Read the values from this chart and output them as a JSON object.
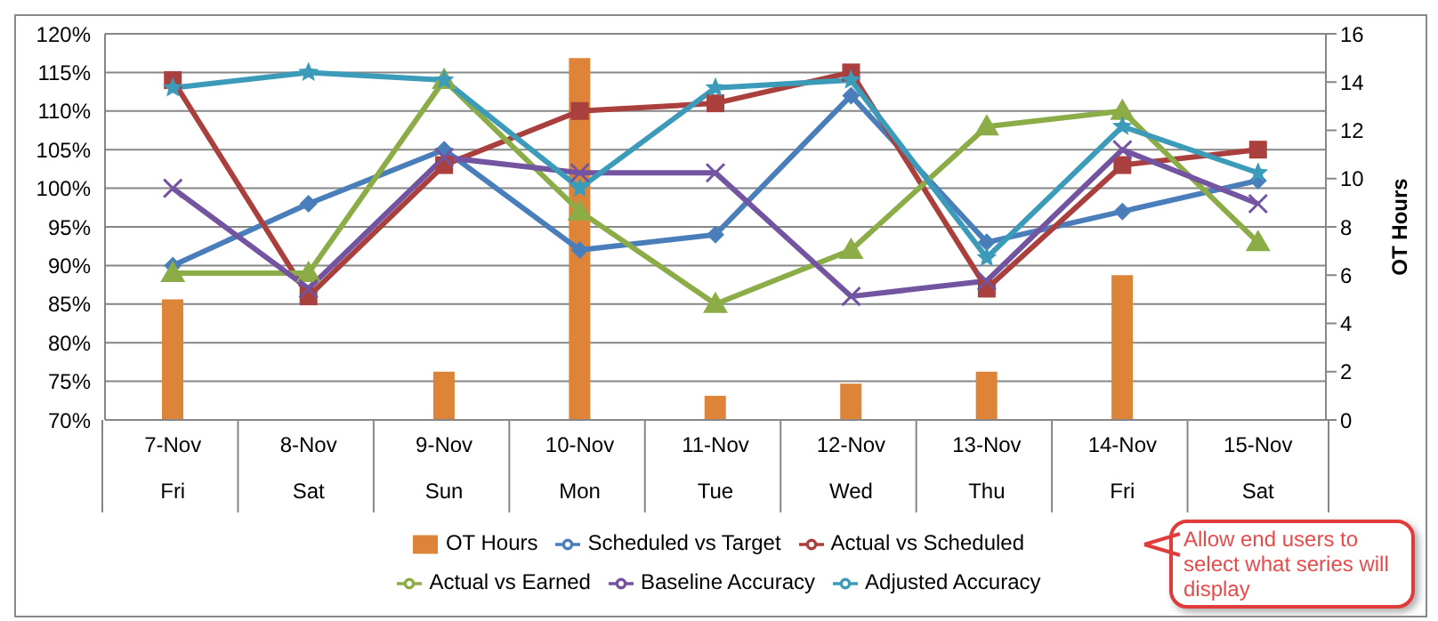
{
  "chart_data": {
    "type": "line",
    "categories": [
      "7-Nov\nFri",
      "8-Nov\nSat",
      "9-Nov\nSun",
      "10-Nov\nMon",
      "11-Nov\nTue",
      "12-Nov\nWed",
      "13-Nov\nThu",
      "14-Nov\nFri",
      "15-Nov\nSat"
    ],
    "series": [
      {
        "name": "OT Hours",
        "type": "bar",
        "axis": "y2",
        "color": "#de8439",
        "values": [
          5,
          null,
          2,
          15,
          1,
          1.5,
          2,
          6,
          null
        ]
      },
      {
        "name": "Scheduled vs Target",
        "color": "#4a7ebb",
        "marker": "diamond",
        "values": [
          90,
          98,
          105,
          92,
          94,
          112,
          93,
          97,
          101
        ]
      },
      {
        "name": "Actual vs Scheduled",
        "color": "#a9403e",
        "marker": "square",
        "values": [
          114,
          86,
          103,
          110,
          111,
          115,
          87,
          103,
          105
        ]
      },
      {
        "name": "Actual vs Earned",
        "color": "#8bac46",
        "marker": "triangle",
        "values": [
          89,
          89,
          114,
          97,
          85,
          92,
          108,
          110,
          93
        ]
      },
      {
        "name": "Baseline Accuracy",
        "color": "#7254a0",
        "marker": "cross",
        "values": [
          100,
          87,
          104,
          102,
          102,
          86,
          88,
          105,
          98
        ]
      },
      {
        "name": "Adjusted Accuracy",
        "color": "#3c9bb9",
        "marker": "star",
        "values": [
          113,
          115,
          114,
          100,
          113,
          114,
          91,
          108,
          102
        ]
      }
    ],
    "ylim": [
      70,
      120
    ],
    "yticks": [
      {
        "value": 70,
        "label": "70%"
      },
      {
        "value": 75,
        "label": "75%"
      },
      {
        "value": 80,
        "label": "80%"
      },
      {
        "value": 85,
        "label": "85%"
      },
      {
        "value": 90,
        "label": "90%"
      },
      {
        "value": 95,
        "label": "95%"
      },
      {
        "value": 100,
        "label": "100%"
      },
      {
        "value": 105,
        "label": "105%"
      },
      {
        "value": 110,
        "label": "110%"
      },
      {
        "value": 115,
        "label": "115%"
      },
      {
        "value": 120,
        "label": "120%"
      }
    ],
    "y2lim": [
      0,
      16
    ],
    "y2ticks": [
      0,
      2,
      4,
      6,
      8,
      10,
      12,
      14,
      16
    ],
    "y2label": "OT Hours",
    "grid": "y",
    "legend": "bottom",
    "annotations": [
      "Allow end users to select what series will display"
    ]
  }
}
